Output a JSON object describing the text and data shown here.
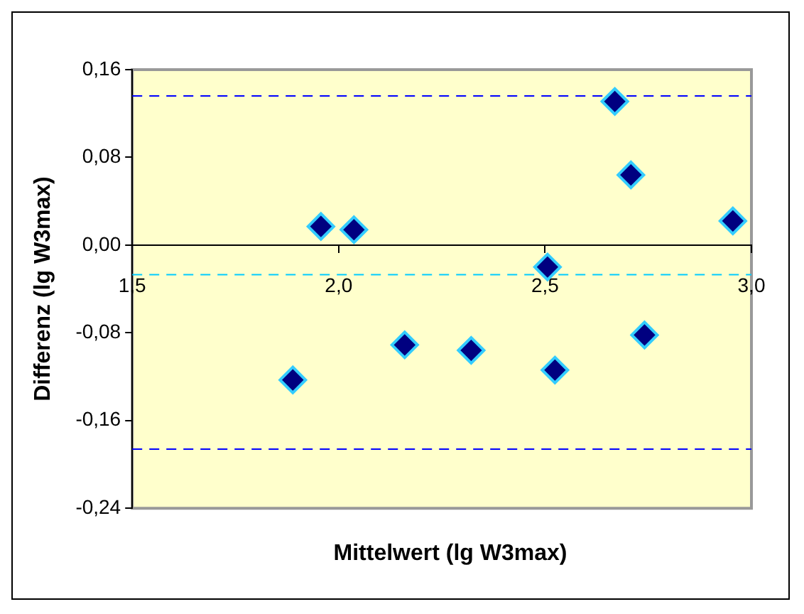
{
  "chart_data": {
    "type": "scatter",
    "xlabel": "Mittelwert (lg W3max)",
    "ylabel": "Differenz (lg W3max)",
    "x": [
      1.889,
      1.957,
      2.037,
      2.16,
      2.321,
      2.506,
      2.524,
      2.669,
      2.708,
      2.741,
      2.955
    ],
    "series": [
      {
        "color": "#000080",
        "values": [
          -0.123,
          0.017,
          0.014,
          -0.091,
          -0.096,
          -0.02,
          -0.114,
          0.131,
          0.064,
          -0.082,
          0.022
        ]
      }
    ],
    "xlim": [
      1.5,
      3.0
    ],
    "xticks": [
      {
        "value": 1.5,
        "label": "1,5"
      },
      {
        "value": 2.0,
        "label": "2,0"
      },
      {
        "value": 2.5,
        "label": "2,5"
      },
      {
        "value": 3.0,
        "label": "3,0"
      }
    ],
    "ylim": [
      -0.24,
      0.16
    ],
    "yticks": [
      {
        "value": -0.24,
        "label": "-0,24"
      },
      {
        "value": -0.16,
        "label": "-0,16"
      },
      {
        "value": -0.08,
        "label": "-0,08"
      },
      {
        "value": 0,
        "label": "0,00"
      },
      {
        "value": 0.08,
        "label": "0,08"
      },
      {
        "value": 0.16,
        "label": "0,16"
      }
    ],
    "ref_lines": [
      {
        "axis": "y",
        "value": 0.136,
        "color": "#0000ff",
        "line_style": "dashed"
      },
      {
        "axis": "y",
        "value": -0.027,
        "color": "#00ccff",
        "line_style": "dashed"
      },
      {
        "axis": "y",
        "value": -0.186,
        "color": "#0000ff",
        "line_style": "dashed"
      }
    ],
    "grid": false,
    "legend": false,
    "marker": "diamond"
  }
}
